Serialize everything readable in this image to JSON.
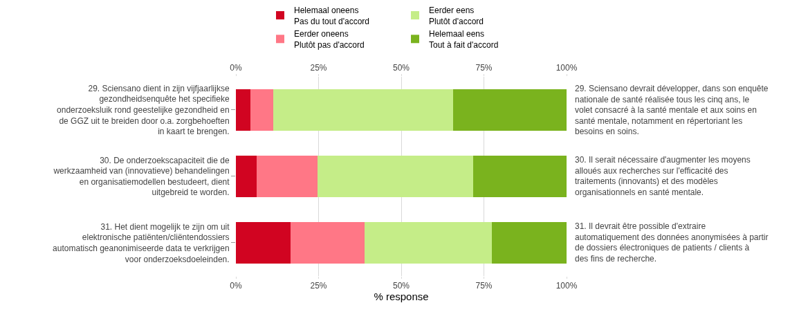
{
  "chart_data": {
    "type": "bar",
    "orientation": "horizontal",
    "stacked": true,
    "categories": [
      "29. Sciensano dient in zijn vijfjaarlijkse gezondheidsenquête het specifieke onderzoeksluik rond geestelijke gezondheid en de GGZ uit te breiden door o.a. zorgbehoeften in kaart te brengen.",
      "30. De onderzoekscapaciteit die de werkzaamheid van (innovatieve) behandelingen en organisatiemodellen bestudeert, dient uitgebreid te worden.",
      "31. Het dient mogelijk te zijn om uit elektronische patiënten/cliëntendossiers automatisch geanonimiseerde data te verkrijgen voor onderzoeksdoeleinden."
    ],
    "y2_categories": [
      "29. Sciensano devrait développer, dans son enquête nationale de santé réalisée tous les cinq ans, le volet consacré à la santé mentale et aux soins en santé mentale, notamment en répertoriant les besoins en soins.",
      "30. Il serait nécessaire d'augmenter les moyens alloués aux recherches sur l'efficacité des traitements (innovants) et des modèles organisationnels en santé mentale.",
      "31. Il devrait être possible d'extraire automatiquement des données anonymisées à partir de dossiers électroniques de patients / clients à des fins de recherche."
    ],
    "series": [
      {
        "name": "Helemaal oneens\nPas du tout d'accord",
        "color": "#d10421",
        "values": [
          4.3,
          6.2,
          16.5
        ]
      },
      {
        "name": "Eerder oneens\nPlutôt pas d'accord",
        "color": "#ff7786",
        "values": [
          7.0,
          18.4,
          22.4
        ]
      },
      {
        "name": "Eerder eens\nPlutôt d'accord",
        "color": "#c5ed88",
        "values": [
          54.4,
          47.1,
          38.6
        ]
      },
      {
        "name": "Helemaal eens\nTout à fait d'accord",
        "color": "#7ab31e",
        "values": [
          34.3,
          28.3,
          22.5
        ]
      }
    ],
    "xlabel": "% response",
    "xlim": [
      0,
      100
    ],
    "xticks": [
      {
        "value": 0,
        "label": "0%"
      },
      {
        "value": 25,
        "label": "25%"
      },
      {
        "value": 50,
        "label": "50%"
      },
      {
        "value": 75,
        "label": "75%"
      },
      {
        "value": 100,
        "label": "100%"
      }
    ],
    "x2lim": [
      0,
      100
    ],
    "x2ticks": [
      {
        "value": 0,
        "label": "0%"
      },
      {
        "value": 25,
        "label": "25%"
      },
      {
        "value": 50,
        "label": "50%"
      },
      {
        "value": 75,
        "label": "75%"
      },
      {
        "value": 100,
        "label": "100%"
      }
    ],
    "grid": "x",
    "legend": "top"
  }
}
